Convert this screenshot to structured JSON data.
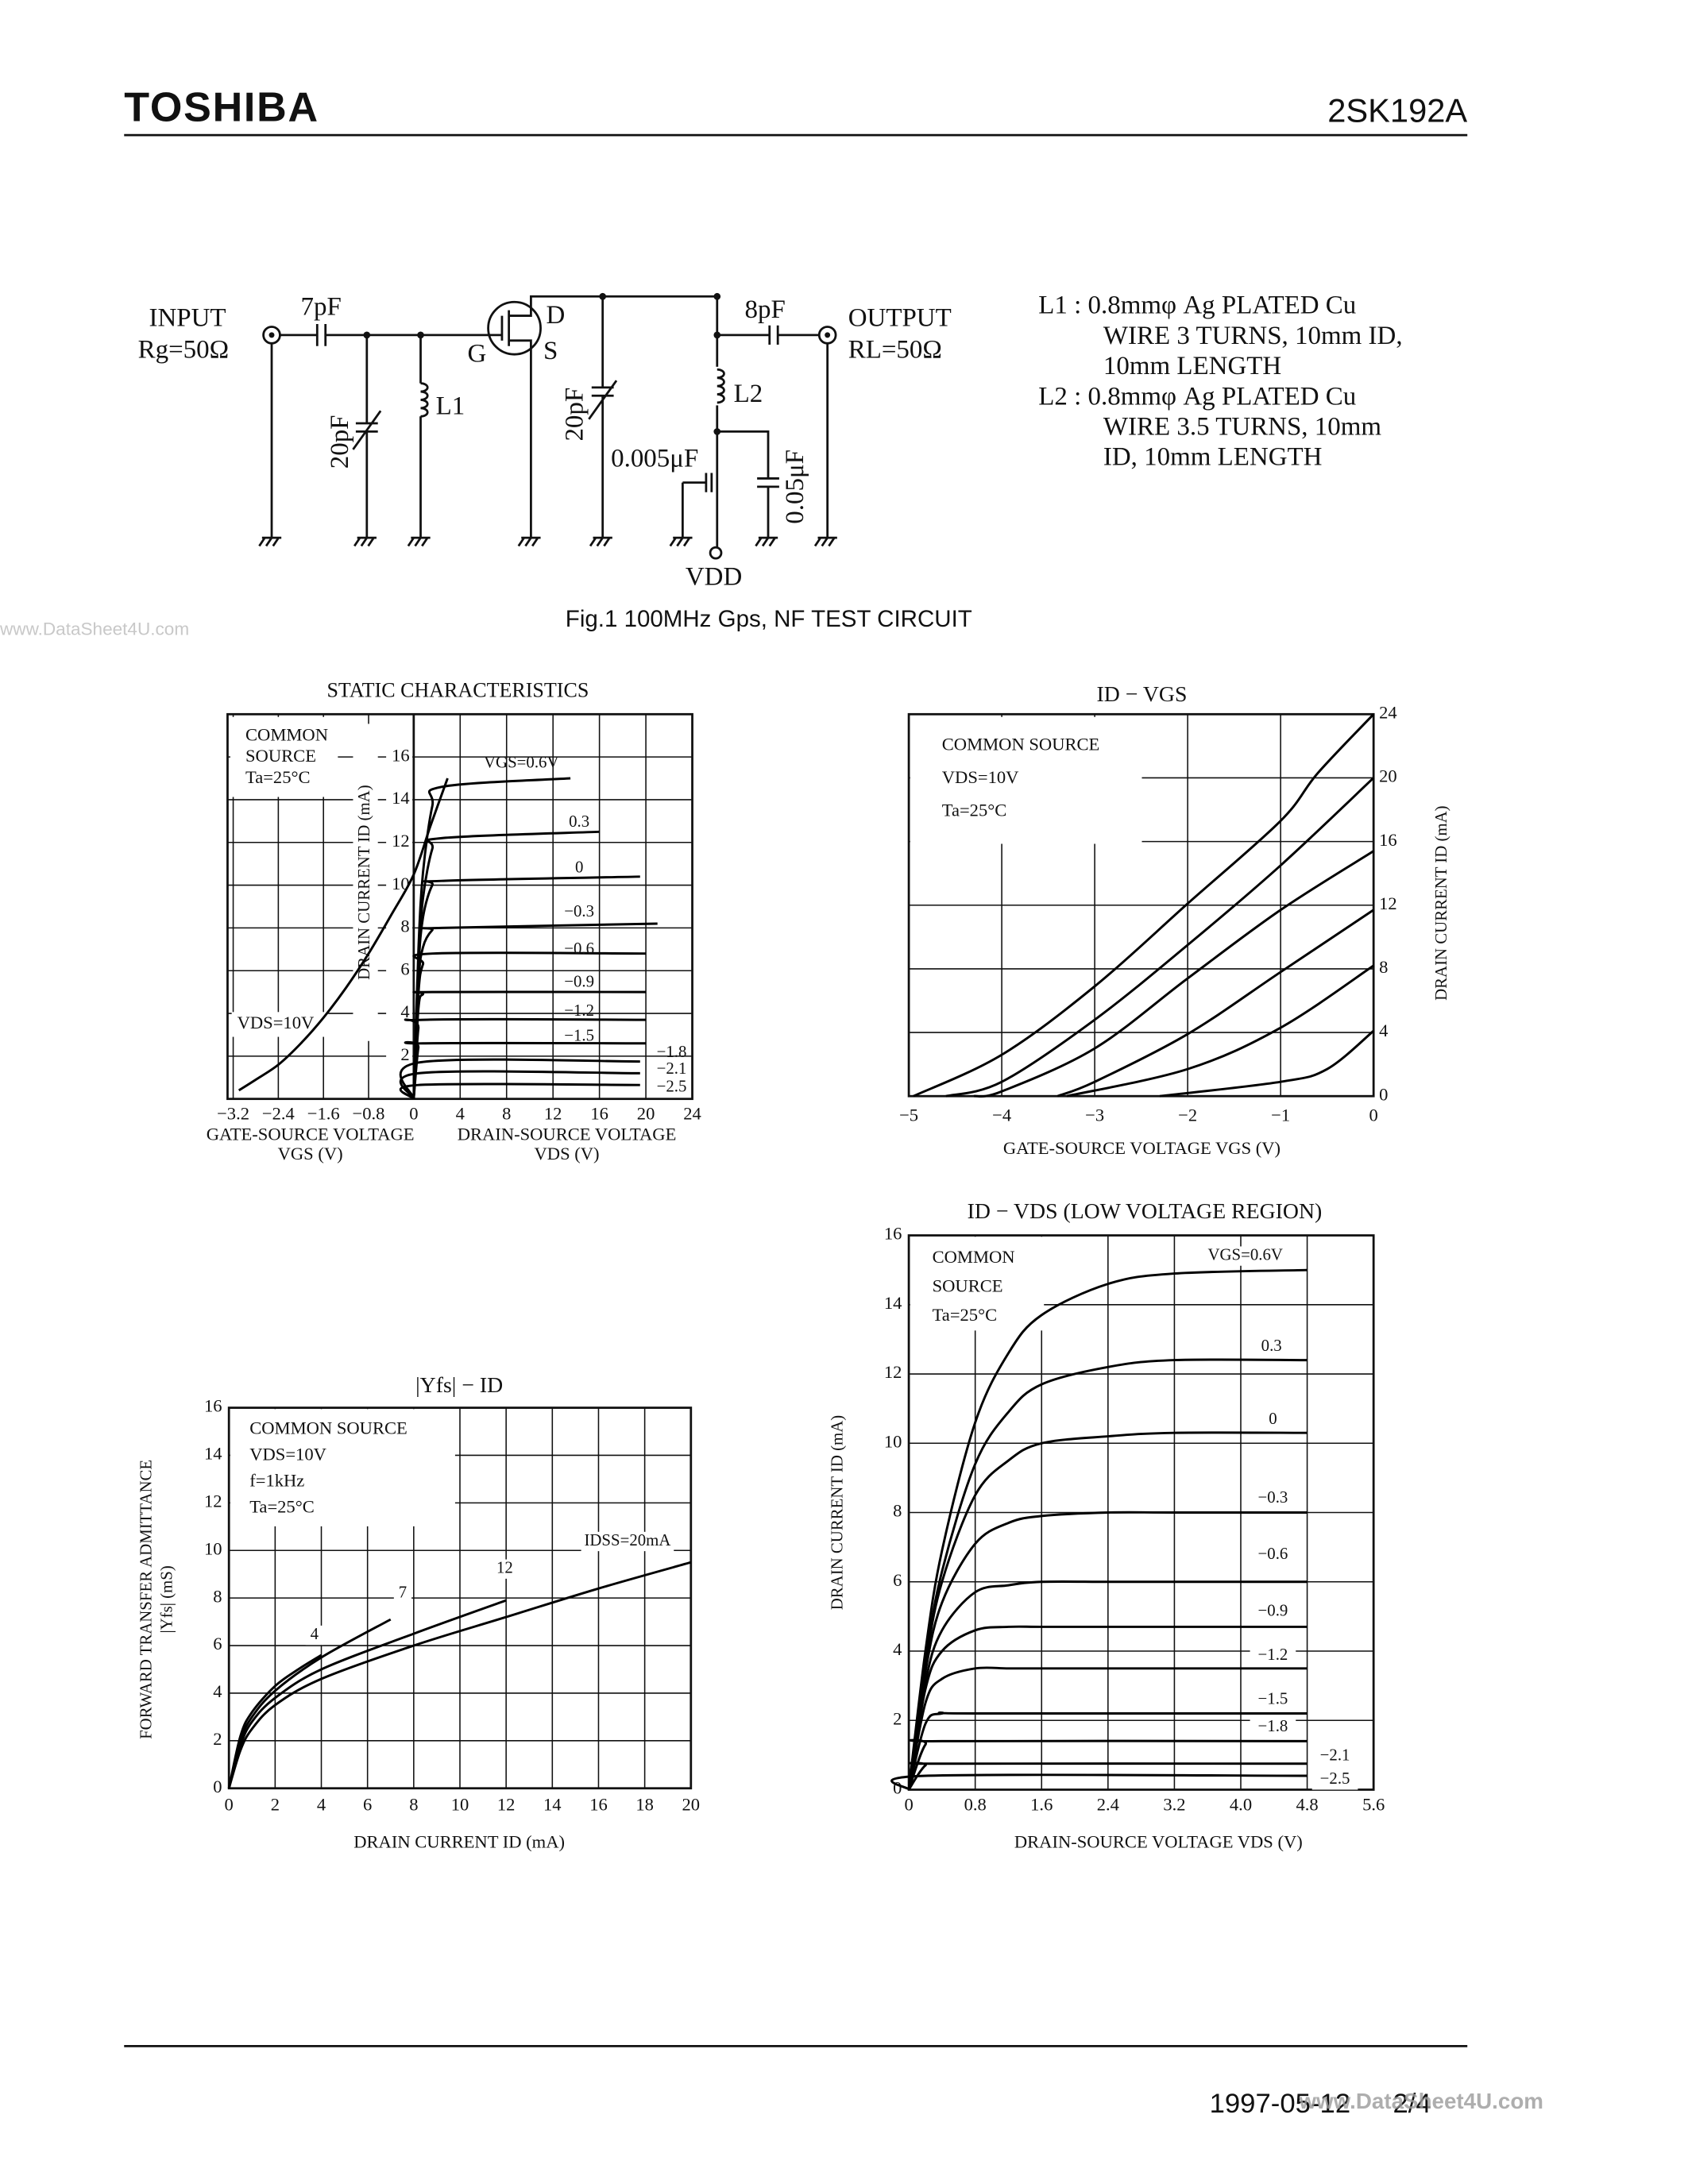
{
  "header": {
    "brand": "TOSHIBA",
    "part": "2SK192A"
  },
  "watermark": "www.DataSheet4U.com",
  "circuit": {
    "input": "INPUT",
    "rg": "Rg=50Ω",
    "c_in": "7pF",
    "c1": "20pF",
    "l1": "L1",
    "g": "G",
    "d": "D",
    "s": "S",
    "c2": "20pF",
    "c3": "0.005μF",
    "vdd": "VDD",
    "c_out": "8pF",
    "l2": "L2",
    "c4": "0.05μF",
    "output": "OUTPUT",
    "rl": "RL=50Ω",
    "notes": [
      "L1 : 0.8mmφ Ag PLATED Cu",
      "WIRE 3 TURNS, 10mm ID,",
      "10mm LENGTH",
      "L2 : 0.8mmφ Ag PLATED Cu",
      "WIRE 3.5 TURNS, 10mm",
      "ID, 10mm LENGTH"
    ],
    "caption": "Fig.1  100MHz Gps, NF TEST CIRCUIT"
  },
  "chart_data": [
    {
      "type": "static",
      "title": "STATIC CHARACTERISTICS",
      "color": "#000000",
      "grid": true,
      "y_label": "DRAIN CURRENT  ID  (mA)",
      "ylim": [
        0,
        18
      ],
      "yticks": [
        2,
        4,
        6,
        8,
        10,
        12,
        14,
        16
      ],
      "note": [
        "COMMON",
        "SOURCE",
        "Ta=25°C"
      ],
      "transfer": {
        "x_label": [
          "GATE-SOURCE VOLTAGE",
          "VGS  (V)"
        ],
        "xlim": [
          -3.3,
          0
        ],
        "xticks": [
          {
            "value": -3.2,
            "label": "−3.2"
          },
          {
            "value": -2.4,
            "label": "−2.4"
          },
          {
            "value": -1.6,
            "label": "−1.6"
          },
          {
            "value": -0.8,
            "label": "−0.8"
          }
        ],
        "series": [
          {
            "name": "VDS=10V",
            "x": [
              -3.1,
              -2.8,
              -2.4,
              -2.0,
              -1.6,
              -1.2,
              -0.8,
              -0.4,
              0,
              0.3,
              0.6
            ],
            "values": [
              0.4,
              0.9,
              1.6,
              2.6,
              3.8,
              5.2,
              6.8,
              8.6,
              10.5,
              12.8,
              15.0
            ]
          }
        ]
      },
      "output": {
        "x_label": [
          "DRAIN-SOURCE VOLTAGE",
          "VDS  (V)"
        ],
        "xlim": [
          0,
          24
        ],
        "xticks": [
          0,
          4,
          8,
          12,
          16,
          20,
          24
        ],
        "series": [
          {
            "name": "VGS=0.6V",
            "x": [
              0,
              0.4,
              0.8,
              1.6,
              2.4,
              13.5
            ],
            "values": [
              0,
              6.9,
              10.6,
              13.7,
              14.6,
              15.0
            ]
          },
          {
            "name": "0.3",
            "x": [
              0,
              0.4,
              0.8,
              1.6,
              2.4,
              16
            ],
            "values": [
              0,
              6.3,
              9.4,
              11.7,
              12.2,
              12.5
            ]
          },
          {
            "name": "0",
            "x": [
              0,
              0.4,
              0.8,
              1.6,
              2.4,
              19.5
            ],
            "values": [
              0,
              6.0,
              8.5,
              10.0,
              10.2,
              10.4
            ]
          },
          {
            "name": "−0.3",
            "x": [
              0,
              0.4,
              0.8,
              1.6,
              2.4,
              21
            ],
            "values": [
              0,
              5.4,
              7.1,
              7.9,
              8.0,
              8.2
            ]
          },
          {
            "name": "−0.6",
            "x": [
              0,
              0.4,
              0.8,
              1.6,
              20
            ],
            "values": [
              0,
              4.9,
              6.3,
              6.8,
              6.8
            ]
          },
          {
            "name": "−0.9",
            "x": [
              0,
              0.4,
              0.8,
              1.6,
              20
            ],
            "values": [
              0,
              4.2,
              4.9,
              5.0,
              5.0
            ]
          },
          {
            "name": "−1.2",
            "x": [
              0,
              0.4,
              0.8,
              20
            ],
            "values": [
              0,
              3.3,
              3.7,
              3.7
            ]
          },
          {
            "name": "−1.5",
            "x": [
              0,
              0.4,
              0.8,
              20
            ],
            "values": [
              0,
              2.4,
              2.6,
              2.6
            ]
          },
          {
            "name": "−1.8",
            "x": [
              0,
              0.4,
              19.5
            ],
            "values": [
              0,
              1.7,
              1.75
            ]
          },
          {
            "name": "−2.1",
            "x": [
              0,
              0.4,
              19.5
            ],
            "values": [
              0,
              1.2,
              1.2
            ]
          },
          {
            "name": "−2.5",
            "x": [
              0,
              0.4,
              19.5
            ],
            "values": [
              0,
              0.65,
              0.65
            ]
          }
        ]
      }
    },
    {
      "type": "line",
      "title": "ID − VGS",
      "color": "#000000",
      "grid": true,
      "y_axis_side": "right",
      "x_label": "GATE-SOURCE VOLTAGE  VGS  (V)",
      "y_label": [
        "DRAIN CURRENT  ID  (mA)"
      ],
      "note": [
        "COMMON SOURCE",
        "VDS=10V",
        "Ta=25°C"
      ],
      "xlim": [
        -5,
        0
      ],
      "xticks": [
        {
          "value": -5,
          "label": "−5"
        },
        {
          "value": -4,
          "label": "−4"
        },
        {
          "value": -3,
          "label": "−3"
        },
        {
          "value": -2,
          "label": "−2"
        },
        {
          "value": -1,
          "label": "−1"
        },
        0
      ],
      "ylim": [
        0,
        24
      ],
      "yticks": [
        0,
        4,
        8,
        12,
        16,
        20,
        24
      ],
      "series": [
        {
          "x": [
            -4.95,
            -4,
            -3,
            -2,
            -1,
            -0.6,
            0
          ],
          "values": [
            0,
            2.6,
            6.9,
            12.1,
            17.3,
            20.3,
            24
          ]
        },
        {
          "x": [
            -4.6,
            -4,
            -3,
            -2,
            -1,
            0
          ],
          "values": [
            0,
            0.9,
            4.8,
            9.5,
            14.5,
            20
          ]
        },
        {
          "x": [
            -4.3,
            -4,
            -3,
            -2,
            -1,
            0
          ],
          "values": [
            0,
            0.3,
            3.0,
            7.4,
            11.7,
            15.4
          ]
        },
        {
          "x": [
            -3.4,
            -3,
            -2,
            -1,
            0
          ],
          "values": [
            0,
            0.9,
            3.9,
            7.8,
            11.7
          ]
        },
        {
          "x": [
            -3.3,
            -2,
            -1,
            0
          ],
          "values": [
            0,
            1.7,
            4.3,
            8.2
          ]
        },
        {
          "x": [
            -2.3,
            -1,
            -0.5,
            0
          ],
          "values": [
            0,
            0.9,
            1.7,
            4.1
          ]
        }
      ]
    },
    {
      "type": "line",
      "title": "|Yfs| − ID",
      "color": "#000000",
      "grid": true,
      "y_axis_side": "left",
      "x_label": "DRAIN CURRENT  ID  (mA)",
      "y_label": [
        "FORWARD TRANSFER ADMITTANCE",
        "|Yfs|  (mS)"
      ],
      "note": [
        "COMMON SOURCE",
        "VDS=10V",
        "f=1kHz",
        "Ta=25°C"
      ],
      "xlim": [
        0,
        20
      ],
      "xticks": [
        0,
        2,
        4,
        6,
        8,
        10,
        12,
        14,
        16,
        18,
        20
      ],
      "ylim": [
        0,
        16
      ],
      "yticks": [
        0,
        2,
        4,
        6,
        8,
        10,
        12,
        14,
        16
      ],
      "series": [
        {
          "name": "4",
          "x": [
            0,
            0.5,
            1,
            2,
            3,
            4
          ],
          "values": [
            0,
            2.2,
            3.2,
            4.3,
            5.0,
            5.6
          ]
        },
        {
          "name": "7",
          "x": [
            0,
            0.5,
            1,
            2,
            4,
            7
          ],
          "values": [
            0,
            2.0,
            3.0,
            4.1,
            5.5,
            7.1
          ]
        },
        {
          "name": "12",
          "x": [
            0,
            0.5,
            1,
            2,
            4,
            8,
            12
          ],
          "values": [
            0,
            1.8,
            2.8,
            3.8,
            5.0,
            6.5,
            7.9
          ]
        },
        {
          "name": "IDSS=20mA",
          "x": [
            0,
            0.5,
            1,
            2,
            4,
            8,
            12,
            16,
            20
          ],
          "values": [
            0,
            1.6,
            2.5,
            3.5,
            4.6,
            6.0,
            7.2,
            8.4,
            9.5
          ]
        }
      ]
    },
    {
      "type": "line",
      "title": "ID − VDS   (LOW VOLTAGE REGION)",
      "color": "#000000",
      "grid": true,
      "y_axis_side": "left",
      "x_label": "DRAIN-SOURCE VOLTAGE  VDS  (V)",
      "y_label": [
        "DRAIN CURRENT  ID  (mA)"
      ],
      "note": [
        "COMMON",
        "SOURCE",
        "Ta=25°C"
      ],
      "xlim": [
        0,
        5.6
      ],
      "xticks": [
        0,
        0.8,
        1.6,
        2.4,
        3.2,
        {
          "value": 4,
          "label": "4.0"
        },
        4.8,
        5.6
      ],
      "ylim": [
        0,
        16
      ],
      "yticks": [
        0,
        2,
        4,
        6,
        8,
        10,
        12,
        14,
        16
      ],
      "series": [
        {
          "name": "VGS=0.6V",
          "x": [
            0,
            0.2,
            0.4,
            0.8,
            1.2,
            1.6,
            2.4,
            3.2,
            4.8
          ],
          "values": [
            0,
            4.0,
            6.9,
            10.6,
            12.6,
            13.7,
            14.6,
            14.9,
            15.0
          ]
        },
        {
          "name": "0.3",
          "x": [
            0,
            0.2,
            0.4,
            0.8,
            1.2,
            1.6,
            2.4,
            3.2,
            4.8
          ],
          "values": [
            0,
            3.7,
            6.3,
            9.4,
            10.9,
            11.7,
            12.2,
            12.4,
            12.4
          ]
        },
        {
          "name": "0",
          "x": [
            0,
            0.2,
            0.4,
            0.8,
            1.2,
            1.6,
            2.4,
            3.2,
            4.8
          ],
          "values": [
            0,
            3.6,
            6.0,
            8.5,
            9.5,
            10.0,
            10.2,
            10.3,
            10.3
          ]
        },
        {
          "name": "−0.3",
          "x": [
            0,
            0.2,
            0.4,
            0.8,
            1.2,
            1.6,
            2.4,
            3.2,
            4.8
          ],
          "values": [
            0,
            3.4,
            5.4,
            7.1,
            7.7,
            7.9,
            8.0,
            8.0,
            8.0
          ]
        },
        {
          "name": "−0.6",
          "x": [
            0,
            0.2,
            0.4,
            0.8,
            1.2,
            1.6,
            2.4,
            3.2,
            4.8
          ],
          "values": [
            0,
            3.1,
            4.6,
            5.7,
            5.9,
            6.0,
            6.0,
            6.0,
            6.0
          ]
        },
        {
          "name": "−0.9",
          "x": [
            0,
            0.2,
            0.4,
            0.8,
            1.2,
            1.6,
            2.4,
            3.2,
            4.8
          ],
          "values": [
            0,
            2.9,
            4.0,
            4.6,
            4.7,
            4.7,
            4.7,
            4.7,
            4.7
          ]
        },
        {
          "name": "−1.2",
          "x": [
            0,
            0.2,
            0.4,
            0.8,
            1.2,
            1.6,
            2.4,
            3.2,
            4.8
          ],
          "values": [
            0,
            2.5,
            3.2,
            3.5,
            3.5,
            3.5,
            3.5,
            3.5,
            3.5
          ]
        },
        {
          "name": "−1.5",
          "x": [
            0,
            0.2,
            0.4,
            0.8,
            4.8
          ],
          "values": [
            0,
            1.9,
            2.2,
            2.2,
            2.2
          ]
        },
        {
          "name": "−1.8",
          "x": [
            0,
            0.2,
            0.4,
            4.8
          ],
          "values": [
            0,
            1.3,
            1.4,
            1.4
          ]
        },
        {
          "name": "−2.1",
          "x": [
            0,
            0.2,
            0.4,
            4.8
          ],
          "values": [
            0,
            0.7,
            0.75,
            0.75
          ]
        },
        {
          "name": "−2.5",
          "x": [
            0,
            0.2,
            4.8
          ],
          "values": [
            0,
            0.4,
            0.4
          ]
        }
      ]
    }
  ],
  "footer": {
    "date": "1997-05-12",
    "page": "2/4"
  }
}
